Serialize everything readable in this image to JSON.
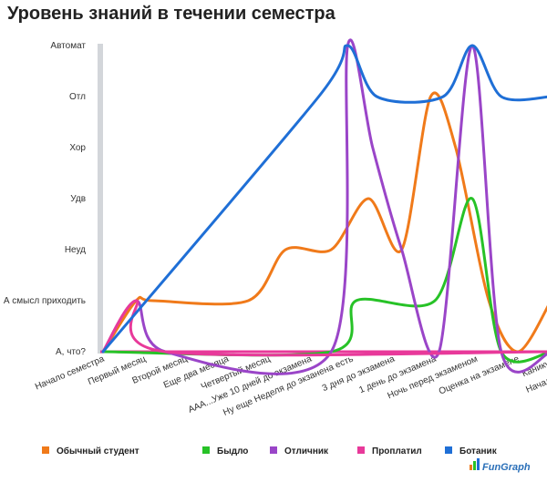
{
  "chart_data": {
    "type": "line",
    "title": "Уровень знаний в течении семестра",
    "y_levels": [
      "А, что?",
      "А смысл приходить",
      "Неуд",
      "Удв",
      "Хор",
      "Отл",
      "Автомат"
    ],
    "categories": [
      "Начало семестра",
      "Первый месяц",
      "Второй месяц",
      "Еще два месяца",
      "Четвертый месяц",
      "ААА...Уже 10 дней до экзамена",
      "Ну еще Неделя до экзанена есть",
      "3 дня до экзамена",
      "1 день до экзамена",
      "Ночь перед экзаменом",
      "Оценка на экзамене",
      "Каникулы",
      "Начало семестра..."
    ],
    "ylim": [
      0,
      6
    ],
    "grid": false,
    "legend_position": "bottom",
    "series": [
      {
        "name": "Обычный студент",
        "color": "#f07a1a",
        "points": [
          [
            0,
            0
          ],
          [
            0.8,
            1
          ],
          [
            1.2,
            1
          ],
          [
            3.5,
            1
          ],
          [
            4.4,
            2
          ],
          [
            5.5,
            2
          ],
          [
            6.4,
            3
          ],
          [
            7.2,
            2
          ],
          [
            7.9,
            5
          ],
          [
            8.5,
            4
          ],
          [
            9.3,
            1
          ],
          [
            10,
            0
          ],
          [
            10.8,
            1
          ]
        ]
      },
      {
        "name": "Быдло",
        "color": "#27c227",
        "points": [
          [
            0,
            0
          ],
          [
            5.5,
            0
          ],
          [
            6.1,
            1
          ],
          [
            8,
            1
          ],
          [
            8.9,
            3
          ],
          [
            9.6,
            0
          ],
          [
            10.8,
            0
          ]
        ]
      },
      {
        "name": "Отличник",
        "color": "#9a45c8",
        "points": [
          [
            0,
            0
          ],
          [
            0.8,
            1
          ],
          [
            1.5,
            0
          ],
          [
            5.5,
            0
          ],
          [
            5.9,
            6
          ],
          [
            6.5,
            4
          ],
          [
            7.2,
            2
          ],
          [
            8.1,
            0
          ],
          [
            8.9,
            6
          ],
          [
            9.6,
            0
          ],
          [
            10.8,
            0
          ]
        ]
      },
      {
        "name": "Проплатил",
        "color": "#e8399a",
        "points": [
          [
            0,
            0
          ],
          [
            0.8,
            1
          ],
          [
            1.5,
            0
          ],
          [
            10.8,
            0
          ]
        ]
      },
      {
        "name": "Ботаник",
        "color": "#1f6fd6",
        "points": [
          [
            0,
            0
          ],
          [
            5.2,
            5
          ],
          [
            5.9,
            6
          ],
          [
            6.6,
            5
          ],
          [
            8.2,
            5
          ],
          [
            8.9,
            6
          ],
          [
            9.6,
            5
          ],
          [
            10.8,
            5
          ]
        ]
      }
    ]
  },
  "logo": {
    "text": "FunGraph"
  }
}
